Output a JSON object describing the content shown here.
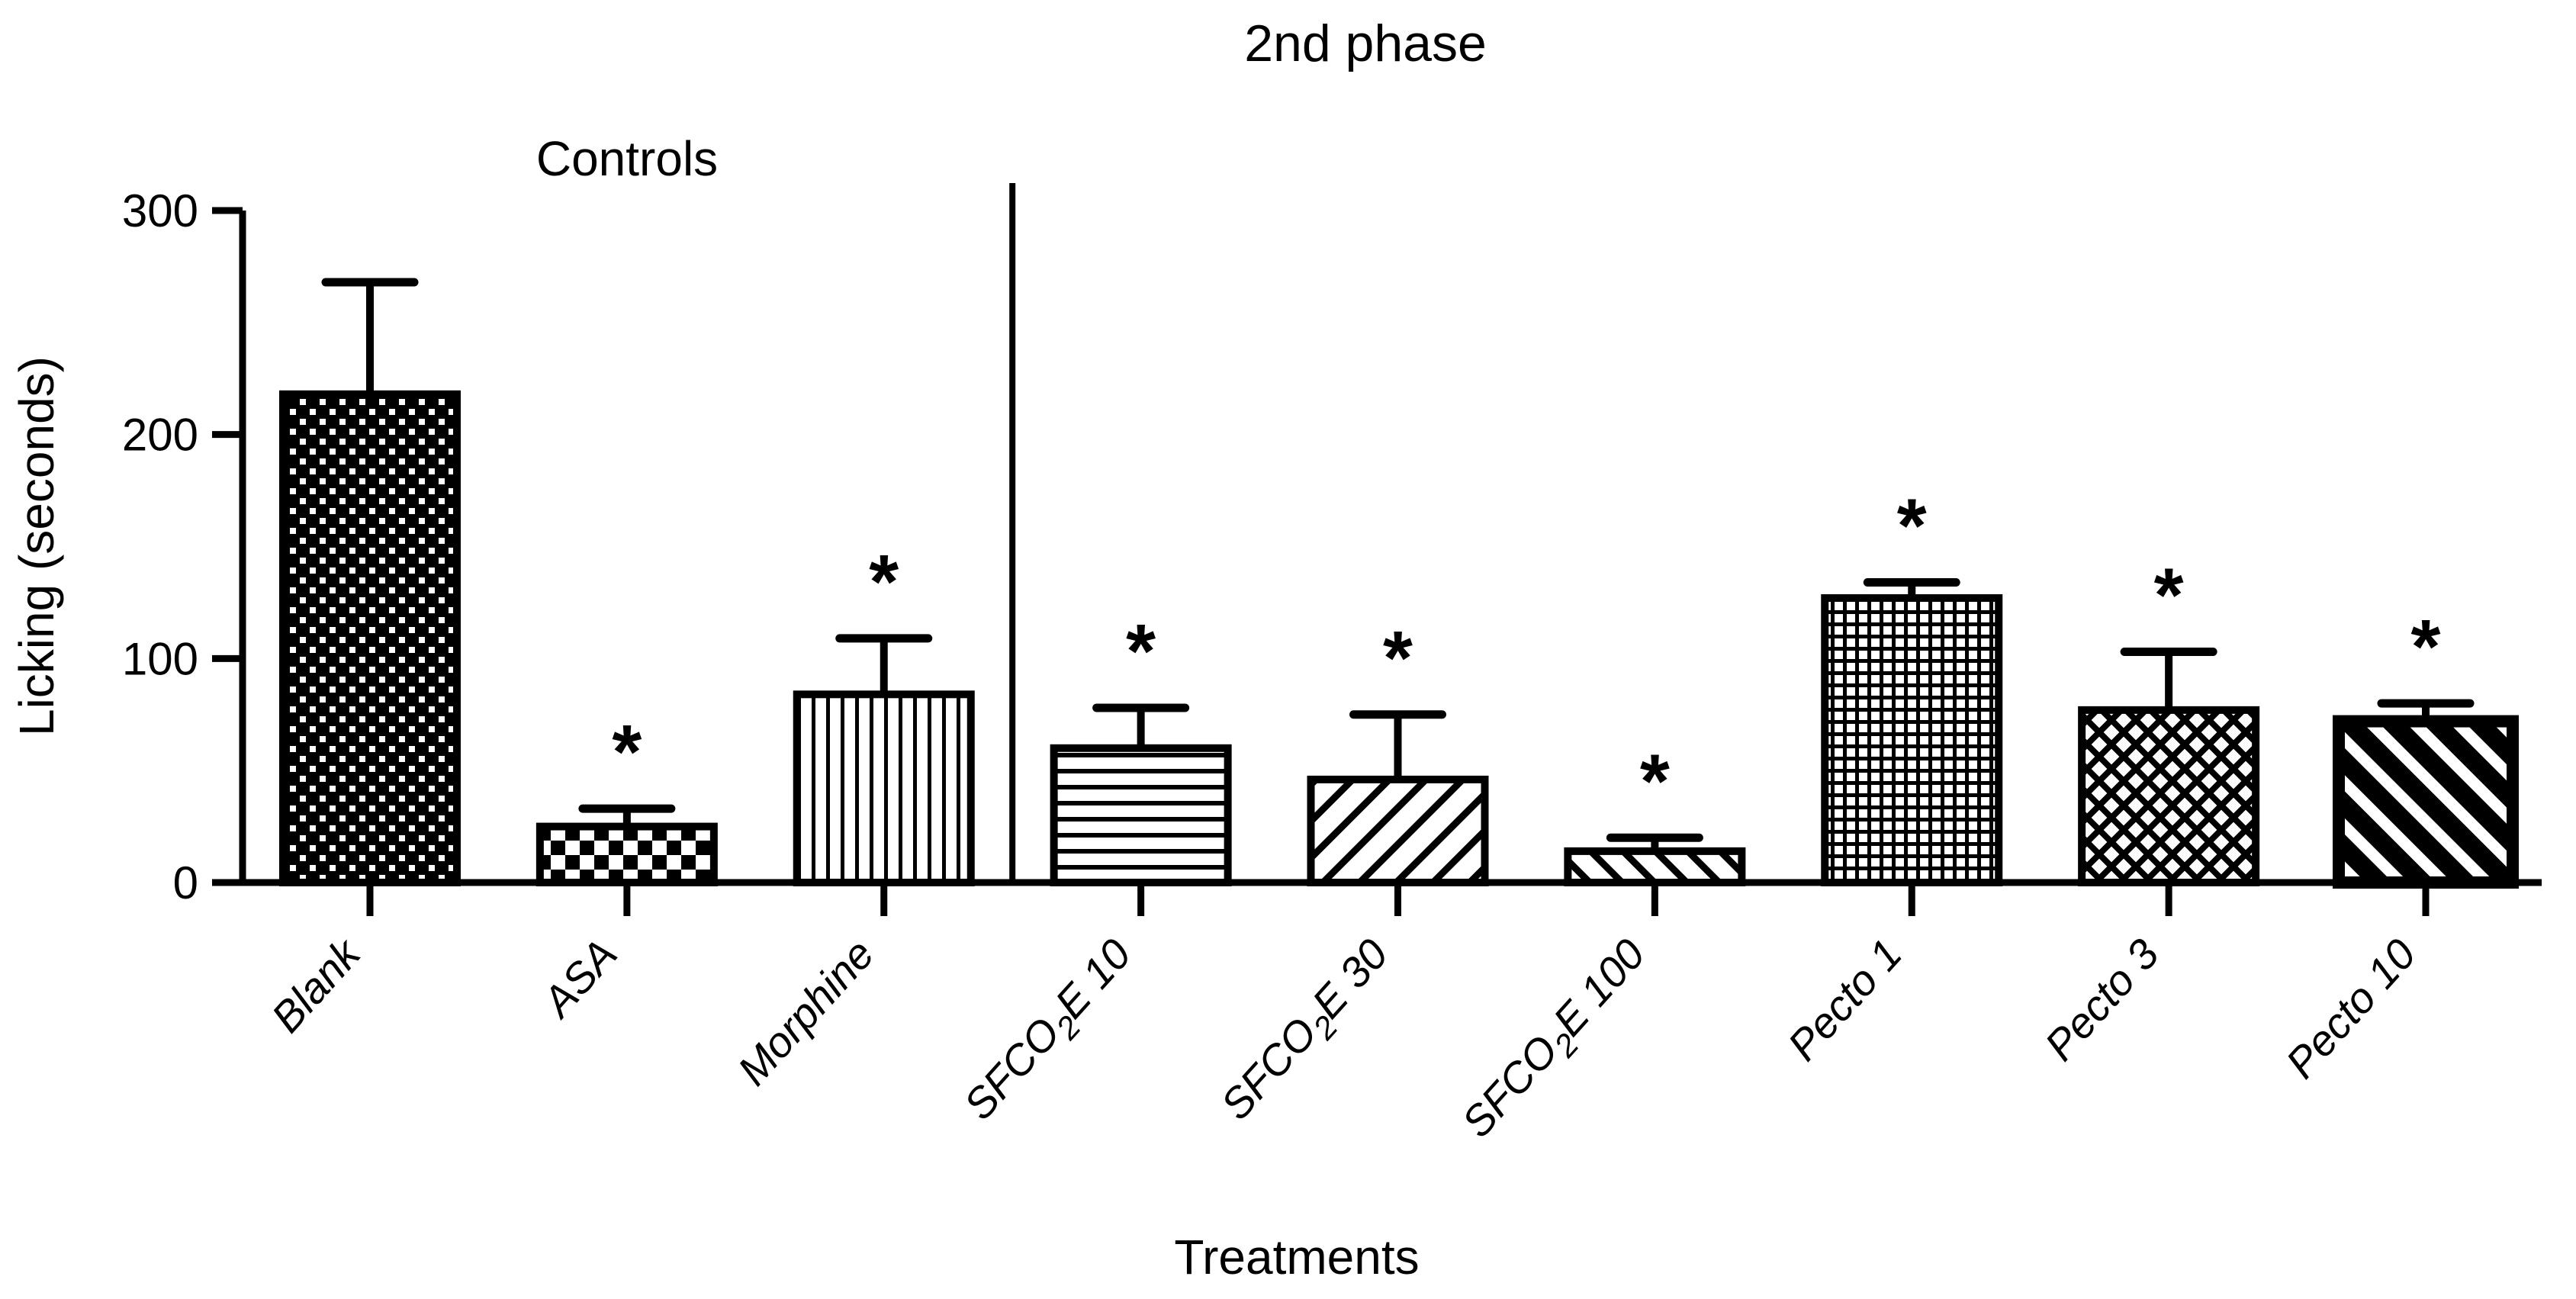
{
  "title": "2nd phase",
  "colors": {
    "foreground": "#000000",
    "background": "#ffffff"
  },
  "chart_data": {
    "type": "bar",
    "title": "2nd phase",
    "xlabel": "Treatments",
    "ylabel": "Licking (seconds)",
    "ylim": [
      0,
      300
    ],
    "yticks": [
      0,
      100,
      200,
      300
    ],
    "grid": false,
    "legend": "none",
    "error_bars": "SEM, upper only",
    "significance_marker": "*",
    "annotations": {
      "controls_label": "Controls",
      "divider_after_index": 2
    },
    "categories": [
      "Blank",
      "ASA",
      "Morphine",
      "SFCO2E 10",
      "SFCO2E 30",
      "SFCO2E 100",
      "Pecto 1",
      "Pecto 3",
      "Pecto 10"
    ],
    "bars": [
      {
        "label": "Blank",
        "label_parts": [
          {
            "t": "Blank"
          }
        ],
        "value": 218,
        "sem": 50,
        "significant": false,
        "pattern": "fine-checker"
      },
      {
        "label": "ASA",
        "label_parts": [
          {
            "t": "ASA"
          }
        ],
        "value": 25,
        "sem": 8,
        "significant": true,
        "pattern": "coarse-checker"
      },
      {
        "label": "Morphine",
        "label_parts": [
          {
            "t": "Morphine"
          }
        ],
        "value": 84,
        "sem": 25,
        "significant": true,
        "pattern": "vertical-stripes"
      },
      {
        "label": "SFCO2E 10",
        "label_parts": [
          {
            "t": "SFCO"
          },
          {
            "t": "2",
            "sub": true
          },
          {
            "t": "E 10"
          }
        ],
        "value": 60,
        "sem": 18,
        "significant": true,
        "pattern": "horizontal-stripes"
      },
      {
        "label": "SFCO2E 30",
        "label_parts": [
          {
            "t": "SFCO"
          },
          {
            "t": "2",
            "sub": true
          },
          {
            "t": "E 30"
          }
        ],
        "value": 46,
        "sem": 29,
        "significant": true,
        "pattern": "diagonal-stripes-up"
      },
      {
        "label": "SFCO2E 100",
        "label_parts": [
          {
            "t": "SFCO"
          },
          {
            "t": "2",
            "sub": true
          },
          {
            "t": "E 100"
          }
        ],
        "value": 14,
        "sem": 6,
        "significant": true,
        "pattern": "diagonal-stripes-down"
      },
      {
        "label": "Pecto 1",
        "label_parts": [
          {
            "t": "Pecto 1"
          }
        ],
        "value": 127,
        "sem": 7,
        "significant": true,
        "pattern": "grid"
      },
      {
        "label": "Pecto 3",
        "label_parts": [
          {
            "t": "Pecto 3"
          }
        ],
        "value": 77,
        "sem": 26,
        "significant": true,
        "pattern": "diagonal-crosshatch"
      },
      {
        "label": "Pecto 10",
        "label_parts": [
          {
            "t": "Pecto 10"
          }
        ],
        "value": 72,
        "sem": 8,
        "significant": true,
        "pattern": "thick-diagonal-stripes"
      }
    ]
  }
}
